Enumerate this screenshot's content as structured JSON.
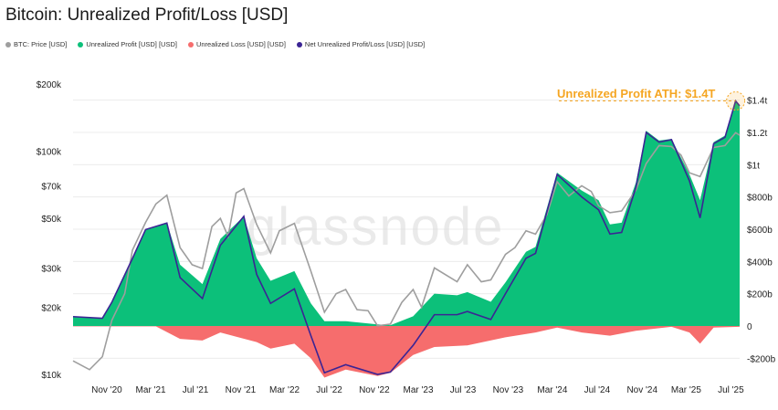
{
  "title": "Bitcoin: Unrealized Profit/Loss [USD]",
  "legend": [
    {
      "label": "BTC: Price [USD]",
      "color": "#9e9e9e"
    },
    {
      "label": "Unrealized Profit [USD] [USD]",
      "color": "#0cc07a"
    },
    {
      "label": "Unrealized Loss [USD] [USD]",
      "color": "#f66d6d"
    },
    {
      "label": "Net Unrealized Profit/Loss [USD] [USD]",
      "color": "#3b2494"
    }
  ],
  "annotation": "Unrealized Profit ATH: $1.4T",
  "watermark": "glassnode",
  "chart_data": {
    "type": "area",
    "x_ticks": [
      "Nov '20",
      "Mar '21",
      "Jul '21",
      "Nov '21",
      "Mar '22",
      "Jul '22",
      "Nov '22",
      "Mar '23",
      "Jul '23",
      "Nov '23",
      "Mar '24",
      "Jul '24",
      "Nov '24",
      "Mar '25",
      "Jul '25"
    ],
    "left_axis": {
      "scale": "log",
      "ticks": [
        "$10k",
        "$20k",
        "$30k",
        "$50k",
        "$70k",
        "$100k",
        "$200k"
      ],
      "tick_values": [
        10000,
        20000,
        30000,
        50000,
        70000,
        100000,
        200000
      ],
      "ylim": [
        10000,
        200000
      ]
    },
    "right_axis": {
      "scale": "linear",
      "ticks": [
        "-$200b",
        "0",
        "$200b",
        "$400b",
        "$600b",
        "$800b",
        "$1t",
        "$1.2t",
        "$1.4t"
      ],
      "tick_values": [
        -200,
        0,
        200,
        400,
        600,
        800,
        1000,
        1200,
        1400
      ],
      "ylim": [
        -300,
        1500
      ],
      "unit": "billions USD"
    },
    "series": [
      {
        "name": "BTC: Price [USD]",
        "axis": "left",
        "x": [
          "2020-08-01",
          "2020-09-15",
          "2020-10-20",
          "2020-11-15",
          "2020-12-20",
          "2021-01-10",
          "2021-02-15",
          "2021-03-15",
          "2021-04-14",
          "2021-05-20",
          "2021-06-22",
          "2021-07-20",
          "2021-08-15",
          "2021-09-07",
          "2021-09-28",
          "2021-10-20",
          "2021-11-10",
          "2021-12-15",
          "2022-01-22",
          "2022-02-15",
          "2022-03-28",
          "2022-05-12",
          "2022-06-18",
          "2022-07-20",
          "2022-08-15",
          "2022-09-15",
          "2022-10-15",
          "2022-11-10",
          "2022-12-15",
          "2023-01-15",
          "2023-02-15",
          "2023-03-10",
          "2023-04-14",
          "2023-06-15",
          "2023-07-13",
          "2023-08-20",
          "2023-09-15",
          "2023-10-25",
          "2023-11-20",
          "2023-12-20",
          "2024-01-15",
          "2024-02-15",
          "2024-03-14",
          "2024-04-15",
          "2024-05-20",
          "2024-06-15",
          "2024-07-05",
          "2024-08-05",
          "2024-09-06",
          "2024-10-15",
          "2024-11-12",
          "2024-12-17",
          "2025-01-20",
          "2025-02-15",
          "2025-03-10",
          "2025-04-08",
          "2025-05-15",
          "2025-06-15",
          "2025-07-14",
          "2025-07-25"
        ],
        "values": [
          11500,
          10500,
          12000,
          17500,
          23000,
          36000,
          48000,
          58000,
          63500,
          37000,
          31000,
          29800,
          46000,
          50000,
          41500,
          65000,
          68000,
          47000,
          35000,
          44000,
          47500,
          29000,
          19000,
          23000,
          24000,
          19500,
          19300,
          16500,
          16800,
          21000,
          24000,
          20000,
          30000,
          26000,
          31000,
          26000,
          26500,
          34500,
          37000,
          44000,
          42500,
          52000,
          73000,
          63000,
          70000,
          66000,
          57000,
          53000,
          54000,
          67000,
          88000,
          106000,
          105000,
          96000,
          80000,
          77000,
          104000,
          106000,
          121000,
          118000
        ]
      },
      {
        "name": "Unrealized Profit [USD] [USD]",
        "axis": "right",
        "x": [
          "2020-08-01",
          "2020-10-20",
          "2020-11-15",
          "2021-01-10",
          "2021-02-15",
          "2021-04-14",
          "2021-05-20",
          "2021-07-20",
          "2021-09-07",
          "2021-11-10",
          "2021-12-15",
          "2022-01-22",
          "2022-03-28",
          "2022-05-12",
          "2022-06-18",
          "2022-08-15",
          "2022-11-10",
          "2022-12-15",
          "2023-02-15",
          "2023-04-14",
          "2023-06-15",
          "2023-07-13",
          "2023-09-15",
          "2023-10-25",
          "2023-12-20",
          "2024-01-15",
          "2024-03-14",
          "2024-05-20",
          "2024-07-05",
          "2024-08-05",
          "2024-09-06",
          "2024-10-15",
          "2024-11-12",
          "2024-12-17",
          "2025-01-20",
          "2025-03-10",
          "2025-04-08",
          "2025-05-15",
          "2025-06-15",
          "2025-07-14",
          "2025-07-25"
        ],
        "values": [
          60,
          50,
          150,
          420,
          600,
          640,
          380,
          260,
          540,
          680,
          420,
          280,
          340,
          140,
          30,
          30,
          10,
          5,
          60,
          200,
          190,
          210,
          150,
          270,
          460,
          490,
          950,
          840,
          780,
          630,
          640,
          890,
          1210,
          1150,
          1160,
          940,
          780,
          1140,
          1180,
          1400,
          1370
        ]
      },
      {
        "name": "Unrealized Loss [USD] [USD]",
        "axis": "right",
        "x": [
          "2020-08-01",
          "2021-03-15",
          "2021-05-20",
          "2021-07-20",
          "2021-09-07",
          "2021-12-15",
          "2022-01-22",
          "2022-03-28",
          "2022-05-12",
          "2022-06-18",
          "2022-08-15",
          "2022-11-10",
          "2022-12-15",
          "2023-02-15",
          "2023-04-14",
          "2023-07-13",
          "2023-10-25",
          "2024-01-15",
          "2024-03-14",
          "2024-05-20",
          "2024-08-05",
          "2024-10-15",
          "2025-01-20",
          "2025-03-10",
          "2025-04-08",
          "2025-05-15",
          "2025-07-25"
        ],
        "values": [
          -2,
          -2,
          -80,
          -90,
          -40,
          -100,
          -140,
          -110,
          -200,
          -320,
          -270,
          -310,
          -290,
          -180,
          -130,
          -120,
          -70,
          -40,
          -10,
          -40,
          -60,
          -30,
          -5,
          -40,
          -110,
          -10,
          -5
        ]
      },
      {
        "name": "Net Unrealized Profit/Loss [USD] [USD]",
        "axis": "right",
        "x": [
          "2020-08-01",
          "2020-10-20",
          "2020-11-15",
          "2021-01-10",
          "2021-02-15",
          "2021-04-14",
          "2021-05-20",
          "2021-07-20",
          "2021-09-07",
          "2021-11-10",
          "2021-12-15",
          "2022-01-22",
          "2022-03-28",
          "2022-05-12",
          "2022-06-18",
          "2022-08-15",
          "2022-11-10",
          "2022-12-15",
          "2023-02-15",
          "2023-04-14",
          "2023-06-15",
          "2023-07-13",
          "2023-09-15",
          "2023-10-25",
          "2023-12-20",
          "2024-01-15",
          "2024-03-14",
          "2024-05-20",
          "2024-07-05",
          "2024-08-05",
          "2024-09-06",
          "2024-10-15",
          "2024-11-12",
          "2024-12-17",
          "2025-01-20",
          "2025-03-10",
          "2025-04-08",
          "2025-05-15",
          "2025-06-15",
          "2025-07-14",
          "2025-07-25"
        ],
        "values": [
          58,
          48,
          148,
          418,
          598,
          638,
          300,
          170,
          500,
          680,
          320,
          140,
          230,
          -60,
          -290,
          -240,
          -300,
          -285,
          -120,
          70,
          70,
          90,
          40,
          200,
          420,
          450,
          940,
          800,
          720,
          570,
          580,
          860,
          1200,
          1140,
          1155,
          900,
          670,
          1130,
          1170,
          1395,
          1365
        ]
      }
    ],
    "fill_colors": {
      "profit": "#0cc07a",
      "loss": "#f66d6d",
      "price": "#9e9e9e",
      "net": "#3b2494",
      "annotation": "#f5a623"
    },
    "grid": "horizontal",
    "legend_position": "top-left"
  }
}
